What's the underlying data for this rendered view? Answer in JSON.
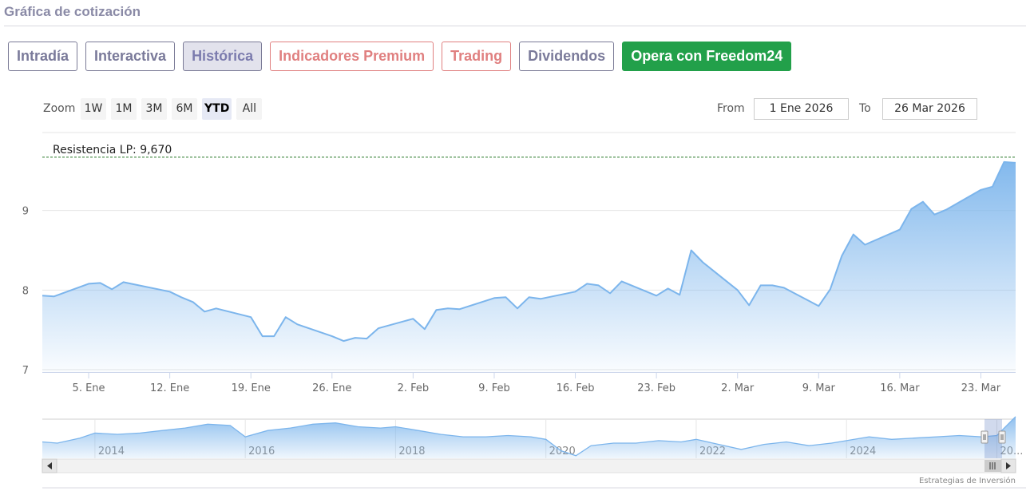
{
  "header": {
    "title": "Gráfica de cotización"
  },
  "tabs": [
    {
      "label": "Intradía",
      "style": "default"
    },
    {
      "label": "Interactiva",
      "style": "default"
    },
    {
      "label": "Histórica",
      "style": "active"
    },
    {
      "label": "Indicadores Premium",
      "style": "red"
    },
    {
      "label": "Trading",
      "style": "red"
    },
    {
      "label": "Dividendos",
      "style": "default"
    },
    {
      "label": "Opera con Freedom24",
      "style": "green"
    }
  ],
  "range_selector": {
    "zoom_label": "Zoom",
    "buttons": [
      "1W",
      "1M",
      "3M",
      "6M",
      "YTD",
      "All"
    ],
    "selected": "YTD",
    "from_label": "From",
    "from_value": "1 Ene 2026",
    "to_label": "To",
    "to_value": "26 Mar 2026"
  },
  "colors": {
    "line": "#7cb5ec",
    "resistance": "#2a7a2a",
    "green_tab": "#22a04a",
    "red_tab": "#e08080"
  },
  "chart_data": {
    "type": "area",
    "title": "",
    "xlabel": "",
    "ylabel": "",
    "ylim": [
      6.97,
      9.97
    ],
    "y_ticks": [
      "7",
      "8",
      "9"
    ],
    "x_ticks": [
      "5. Ene",
      "12. Ene",
      "19. Ene",
      "26. Ene",
      "2. Feb",
      "9. Feb",
      "16. Feb",
      "23. Feb",
      "2. Mar",
      "9. Mar",
      "16. Mar",
      "23. Mar"
    ],
    "series": [
      {
        "x": [
          "2026-01-01",
          "2026-01-02",
          "2026-01-05",
          "2026-01-06",
          "2026-01-07",
          "2026-01-08",
          "2026-01-09",
          "2026-01-12",
          "2026-01-13",
          "2026-01-14",
          "2026-01-15",
          "2026-01-16",
          "2026-01-19",
          "2026-01-20",
          "2026-01-21",
          "2026-01-22",
          "2026-01-23",
          "2026-01-26",
          "2026-01-27",
          "2026-01-28",
          "2026-01-29",
          "2026-01-30",
          "2026-02-02",
          "2026-02-03",
          "2026-02-04",
          "2026-02-05",
          "2026-02-06",
          "2026-02-09",
          "2026-02-10",
          "2026-02-11",
          "2026-02-12",
          "2026-02-13",
          "2026-02-16",
          "2026-02-17",
          "2026-02-18",
          "2026-02-19",
          "2026-02-20",
          "2026-02-23",
          "2026-02-24",
          "2026-02-25",
          "2026-02-26",
          "2026-02-27",
          "2026-03-02",
          "2026-03-03",
          "2026-03-04",
          "2026-03-05",
          "2026-03-06",
          "2026-03-09",
          "2026-03-10",
          "2026-03-11",
          "2026-03-12",
          "2026-03-13",
          "2026-03-16",
          "2026-03-17",
          "2026-03-18",
          "2026-03-19",
          "2026-03-20",
          "2026-03-23",
          "2026-03-24",
          "2026-03-25",
          "2026-03-26"
        ],
        "values": [
          7.93,
          7.92,
          8.08,
          8.09,
          8.01,
          8.1,
          8.07,
          7.98,
          7.91,
          7.85,
          7.73,
          7.77,
          7.66,
          7.42,
          7.42,
          7.66,
          7.57,
          7.42,
          7.36,
          7.4,
          7.39,
          7.52,
          7.64,
          7.51,
          7.75,
          7.77,
          7.76,
          7.9,
          7.91,
          7.77,
          7.91,
          7.89,
          7.98,
          8.08,
          8.06,
          7.96,
          8.11,
          7.93,
          8.02,
          7.94,
          8.5,
          8.35,
          8.0,
          7.81,
          8.06,
          8.06,
          8.03,
          7.8,
          8.01,
          8.43,
          8.7,
          8.57,
          8.76,
          9.02,
          9.11,
          8.95,
          9.01,
          9.26,
          9.3,
          9.61,
          9.6
        ]
      }
    ],
    "annotations": [
      {
        "label": "Resistencia LP: 9,670",
        "y": 9.67,
        "style": "dashed",
        "color": "#2a7a2a"
      }
    ],
    "navigator": {
      "x_ticks": [
        "2014",
        "2016",
        "2018",
        "2020",
        "2022",
        "2024",
        "20..."
      ],
      "x_range": [
        2013.3,
        2026.25
      ],
      "series": {
        "x": [
          2013.3,
          2013.5,
          2013.8,
          2014.0,
          2014.3,
          2014.6,
          2014.9,
          2015.2,
          2015.5,
          2015.8,
          2016.0,
          2016.3,
          2016.6,
          2016.9,
          2017.2,
          2017.5,
          2017.8,
          2018.0,
          2018.3,
          2018.6,
          2018.9,
          2019.2,
          2019.5,
          2019.8,
          2020.0,
          2020.2,
          2020.4,
          2020.6,
          2020.9,
          2021.2,
          2021.5,
          2021.8,
          2022.0,
          2022.3,
          2022.6,
          2022.9,
          2023.2,
          2023.5,
          2023.8,
          2024.0,
          2024.3,
          2024.6,
          2024.9,
          2025.2,
          2025.5,
          2025.8,
          2026.0,
          2026.25
        ],
        "values": [
          7.6,
          7.5,
          7.9,
          8.3,
          8.2,
          8.3,
          8.5,
          8.7,
          9.0,
          8.9,
          8.0,
          8.5,
          8.7,
          9.0,
          9.1,
          8.8,
          8.7,
          8.8,
          8.5,
          8.2,
          8.0,
          8.0,
          8.1,
          8.0,
          7.8,
          6.9,
          6.5,
          7.3,
          7.5,
          7.5,
          7.7,
          7.6,
          7.8,
          7.4,
          7.0,
          7.4,
          7.6,
          7.3,
          7.5,
          7.7,
          8.0,
          7.8,
          7.9,
          8.0,
          8.1,
          8.0,
          8.1,
          9.6
        ]
      },
      "ylim": [
        6.3,
        9.4
      ]
    }
  },
  "credit": "Estrategias de Inversión"
}
